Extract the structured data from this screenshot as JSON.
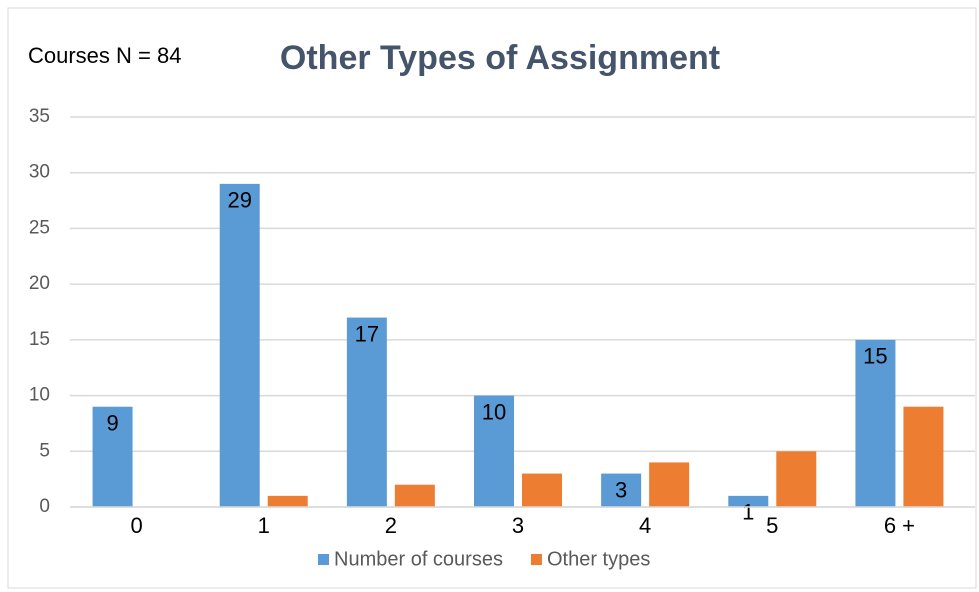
{
  "chart_data": {
    "type": "bar",
    "title": "Other Types of Assignment",
    "annotation": "Courses N = 84",
    "categories": [
      "0",
      "1",
      "2",
      "3",
      "4",
      "5",
      "6 +"
    ],
    "series": [
      {
        "name": "Number of courses",
        "color": "#5b9bd5",
        "values": [
          9,
          29,
          17,
          10,
          3,
          1,
          15
        ],
        "data_labels": true
      },
      {
        "name": "Other types",
        "color": "#ed7d31",
        "values": [
          0,
          1,
          2,
          3,
          4,
          5,
          9
        ],
        "data_labels": false
      }
    ],
    "ylim": [
      0,
      35
    ],
    "yticks": [
      0,
      5,
      10,
      15,
      20,
      25,
      30,
      35
    ],
    "grid": true,
    "legend": "bottom"
  }
}
